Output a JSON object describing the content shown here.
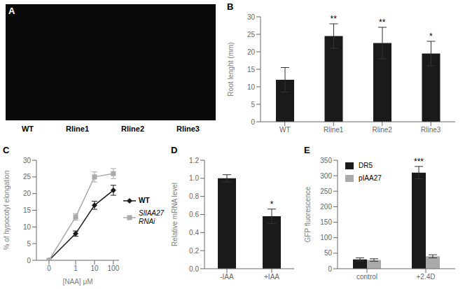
{
  "chart_data": [
    {
      "type": "image",
      "title": "A",
      "color": "#0a0a0a",
      "categories": [
        "WT",
        "Rline1",
        "Rline2",
        "Rline3"
      ]
    },
    {
      "type": "bar",
      "title": "B",
      "categories": [
        "WT",
        "Rline1",
        "Rline2",
        "Rline3"
      ],
      "values": [
        12.0,
        24.5,
        22.5,
        19.5
      ],
      "errors": [
        3.5,
        3.5,
        4.5,
        3.5
      ],
      "color": "#1a1a1a",
      "ylabel": "Root lenght (mm)",
      "ylim": [
        0,
        30
      ],
      "yticks": [
        0,
        5,
        10,
        15,
        20,
        25,
        30
      ],
      "grid": false,
      "annotations": [
        {
          "category": "Rline1",
          "text": "**"
        },
        {
          "category": "Rline2",
          "text": "**"
        },
        {
          "category": "Rline3",
          "text": "*"
        }
      ]
    },
    {
      "type": "line",
      "title": "C",
      "x": [
        0,
        1,
        10,
        100
      ],
      "series": [
        {
          "name": "WT",
          "color": "#1a1a1a",
          "marker": "diamond",
          "values": [
            0,
            8.0,
            16.5,
            21.0
          ],
          "errors": [
            0,
            0.8,
            1.2,
            1.5
          ]
        },
        {
          "name": "SlIAA27\nRNAi",
          "color": "#aaaaaa",
          "marker": "square",
          "values": [
            0,
            13.0,
            25.0,
            26.0
          ],
          "errors": [
            0,
            1.0,
            1.5,
            1.5
          ]
        }
      ],
      "xlabel": "[NAA] μM",
      "ylabel": "% of hypocotyl elongation",
      "xlim": [
        -0.3,
        200
      ],
      "xticks": [
        0,
        1,
        10,
        100
      ],
      "log": "x",
      "ylim": [
        0,
        30
      ],
      "yticks": [
        0,
        5,
        10,
        15,
        20,
        25,
        30
      ],
      "legend": "right",
      "grid": false
    },
    {
      "type": "bar",
      "title": "D",
      "categories": [
        "-IAA",
        "+IAA"
      ],
      "values": [
        1.0,
        0.58
      ],
      "errors": [
        0.04,
        0.08
      ],
      "color": "#1a1a1a",
      "ylabel": "Relative mRNA level",
      "ylim": [
        0,
        1.2
      ],
      "yticks": [
        {
          "value": 0,
          "label": "0.0"
        },
        0.2,
        0.4,
        0.6,
        0.8,
        {
          "value": 1.0,
          "label": "1.0"
        },
        1.2
      ],
      "grid": false,
      "annotations": [
        {
          "category": "+IAA",
          "text": "*"
        }
      ]
    },
    {
      "type": "bar",
      "title": "E",
      "categories": [
        "control",
        "+2.4D"
      ],
      "series": [
        {
          "name": "DR5",
          "color": "#1a1a1a",
          "values": [
            30,
            310
          ],
          "errors": [
            5,
            20
          ]
        },
        {
          "name": "pIAA27",
          "color": "#aaaaaa",
          "values": [
            28,
            40
          ],
          "errors": [
            4,
            5
          ]
        }
      ],
      "ylabel": "GFP fluorescence",
      "ylim": [
        0,
        350
      ],
      "yticks": [
        0,
        50,
        100,
        150,
        200,
        250,
        300,
        350
      ],
      "legend": "upper left",
      "grid": false,
      "annotations": [
        {
          "category": "+2.4D",
          "series": "DR5",
          "text": "***"
        }
      ]
    }
  ]
}
